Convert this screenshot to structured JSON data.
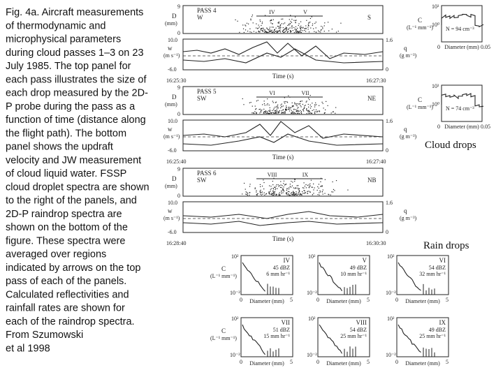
{
  "caption": [
    " Fig. 4a. Aircraft measurements",
    "of thermodynamic and",
    "microphysical parameters",
    "during cloud passes 1–3 on 23",
    "July 1985. The top panel for",
    "each pass illustrates the size of",
    "each drop measured by the 2D-",
    "P probe during the pass as a",
    "function of time (distance along",
    "the flight path). The bottom",
    "panel shows the updraft",
    "velocity and JW measurement",
    "of cloud liquid water. FSSP",
    "cloud droplet spectra are shown",
    "to the right of the panels, and",
    "2D-P raindrop spectra are",
    "shown on the bottom of the",
    "figure. These spectra were",
    "averaged over regions",
    "indicated by arrows on the top",
    "pass of each of the panels.",
    "Calculated reflectivities and",
    "rainfall rates are shown for",
    "each of the raindrop spectra.",
    "From Szumowski",
    "et al 1998"
  ],
  "labels": {
    "cloud_drops": "Cloud drops",
    "rain_drops": "Rain drops"
  },
  "pass_axes": {
    "d_label": "D",
    "d_unit": "(mm)",
    "w_label": "w",
    "w_unit": "(m s⁻¹)",
    "q_label": "q",
    "q_unit": "(g m⁻³)",
    "time": "Time (s)",
    "d_ticks": [
      "9",
      "0"
    ],
    "w_ticks": [
      "10.0",
      "-6.0"
    ],
    "q_ticks": [
      "1.6",
      "0"
    ]
  },
  "passes": [
    {
      "title": "PASS 4",
      "heading": "W",
      "code": "S",
      "t0": "16:25:30",
      "t1": "16:27:30",
      "arrows": [
        "IV",
        "V"
      ]
    },
    {
      "title": "PASS 5",
      "heading": "SW",
      "code": "NE",
      "t0": "16:25:40",
      "t1": "16:27:40",
      "arrows": [
        "VI",
        "VII"
      ]
    },
    {
      "title": "PASS 6",
      "heading": "SW",
      "code": "NB",
      "t0": "16:28:40",
      "t1": "16:30:30",
      "arrows": [
        "VIII",
        "IX"
      ]
    }
  ],
  "cloud_axes": {
    "c_label": "C",
    "c_unit": "(L⁻¹ mm⁻¹)",
    "x_label": "Diameter (mm)",
    "y_ticks": [
      "10³",
      "10⁰"
    ],
    "x_ticks": [
      "0",
      "0.05"
    ]
  },
  "cloud_spectra": [
    {
      "n": "N = 94 cm⁻³"
    },
    {
      "n": "N = 74 cm⁻³"
    }
  ],
  "rain_axes": {
    "c_label": "C",
    "c_unit": "(L⁻¹ mm⁻¹)",
    "x_label": "Diameter (mm)",
    "y_ticks": [
      "10²",
      "10⁻²"
    ],
    "x_ticks": [
      "0",
      "5"
    ]
  },
  "rain_spectra": [
    {
      "id": "IV",
      "dbz": "45 dBZ",
      "rate": "6 mm hr⁻¹"
    },
    {
      "id": "V",
      "dbz": "49 dBZ",
      "rate": "10 mm hr⁻¹"
    },
    {
      "id": "VI",
      "dbz": "54 dBZ",
      "rate": "32 mm hr⁻¹"
    },
    {
      "id": "VII",
      "dbz": "51 dBZ",
      "rate": "15 mm hr⁻¹"
    },
    {
      "id": "VIII",
      "dbz": "54 dBZ",
      "rate": "25 mm hr⁻¹"
    },
    {
      "id": "IX",
      "dbz": "49 dBZ",
      "rate": "25 mm hr⁻¹"
    }
  ]
}
